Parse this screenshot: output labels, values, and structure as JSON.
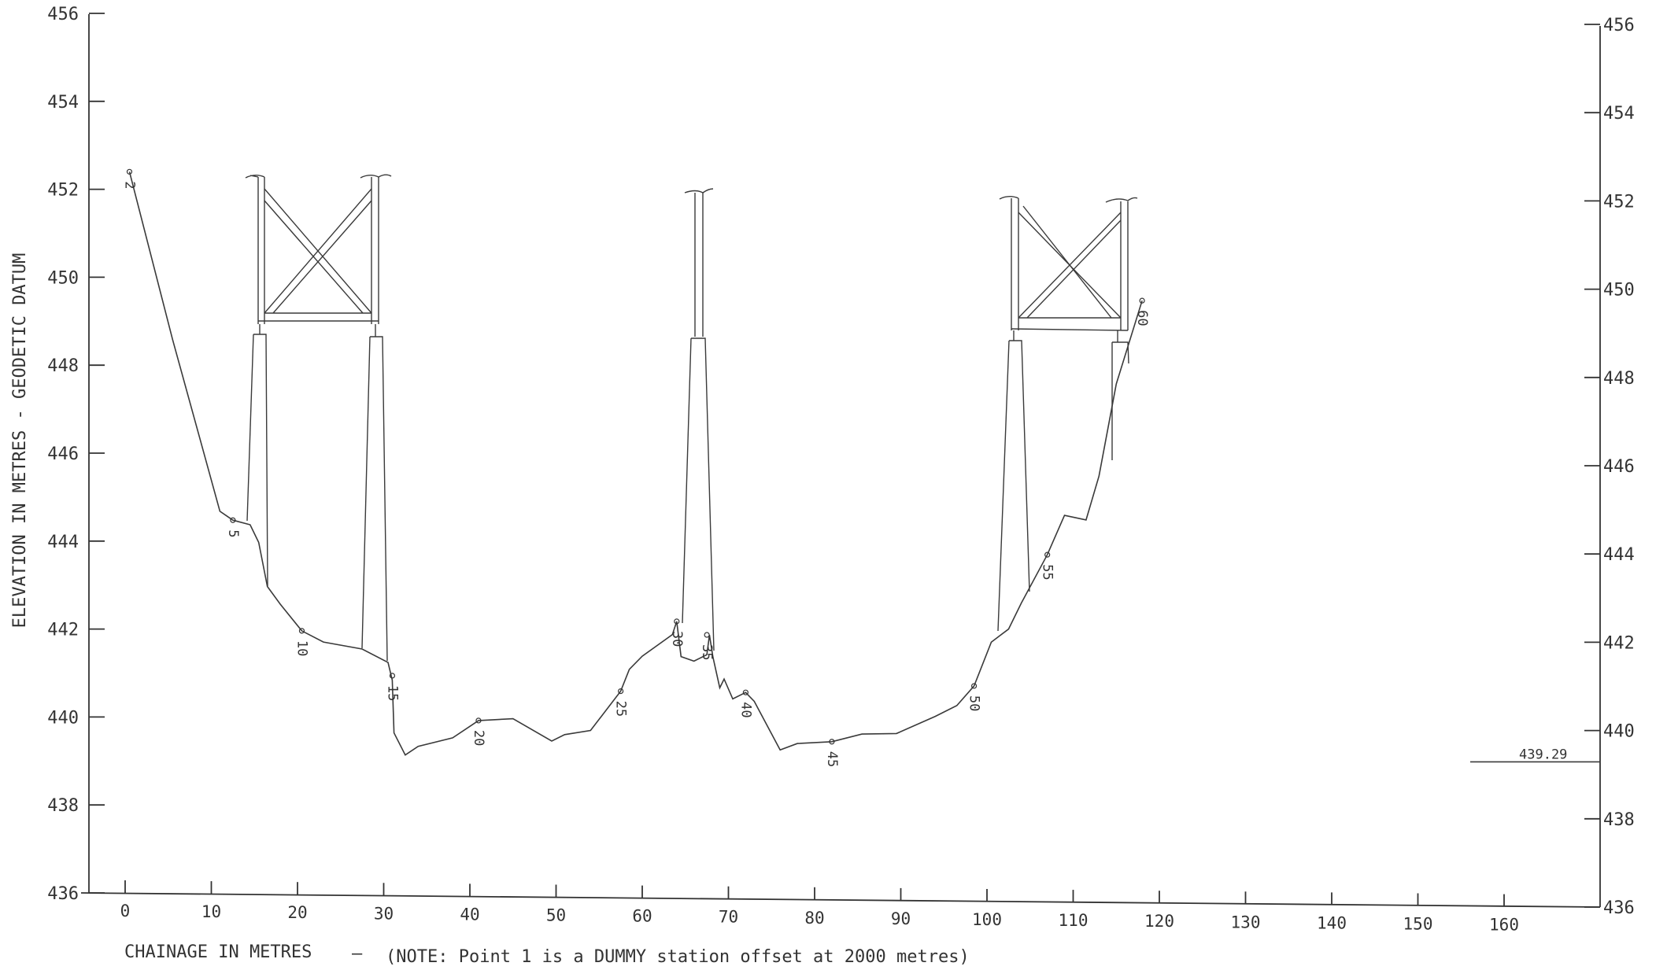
{
  "chart_data": {
    "type": "line",
    "ylabel": "ELEVATION IN METRES - GEODETIC DATUM",
    "xlabel": "CHAINAGE IN METRES",
    "note": "(NOTE: Point 1 is a DUMMY station offset at 2000 metres)",
    "xlabel_separator": "–",
    "xlim": [
      0,
      160
    ],
    "ylim": [
      436,
      456
    ],
    "x_ticks": [
      "0",
      "10",
      "20",
      "30",
      "40",
      "50",
      "60",
      "70",
      "80",
      "90",
      "100",
      "110",
      "120",
      "130",
      "140",
      "150",
      "160"
    ],
    "y_ticks_left": [
      "436",
      "438",
      "440",
      "442",
      "444",
      "446",
      "448",
      "450",
      "452",
      "454",
      "456"
    ],
    "y_ticks_right": [
      "436",
      "438",
      "440",
      "442",
      "444",
      "446",
      "448",
      "450",
      "452",
      "454",
      "456"
    ],
    "water_level": {
      "value": 439.29,
      "label": "439.29"
    },
    "series": [
      {
        "points": [
          [
            0.5,
            452.4
          ],
          [
            5.5,
            448.6
          ],
          [
            11,
            444.7
          ],
          [
            12.5,
            444.5
          ],
          [
            14.5,
            444.4
          ],
          [
            15.5,
            444.0
          ],
          [
            16.5,
            443.0
          ],
          [
            18,
            442.6
          ],
          [
            20.5,
            442.0
          ],
          [
            23,
            441.75
          ],
          [
            27.5,
            441.6
          ],
          [
            30.5,
            441.3
          ],
          [
            31,
            440.9
          ],
          [
            31.2,
            439.7
          ],
          [
            32.5,
            439.2
          ],
          [
            34,
            439.4
          ],
          [
            38,
            439.6
          ],
          [
            41,
            440.0
          ],
          [
            45,
            440.05
          ],
          [
            49.5,
            439.55
          ],
          [
            51,
            439.7
          ],
          [
            54,
            439.8
          ],
          [
            57.5,
            440.7
          ],
          [
            58.5,
            441.2
          ],
          [
            60,
            441.5
          ],
          [
            63.5,
            442.0
          ],
          [
            64,
            442.3
          ],
          [
            64.5,
            441.5
          ],
          [
            66,
            441.4
          ],
          [
            67.5,
            441.55
          ],
          [
            67.8,
            442.0
          ],
          [
            68.2,
            441.5
          ],
          [
            69,
            440.8
          ],
          [
            69.5,
            441.0
          ],
          [
            70.5,
            440.55
          ],
          [
            72,
            440.7
          ],
          [
            73,
            440.5
          ],
          [
            76,
            439.4
          ],
          [
            78,
            439.55
          ],
          [
            82,
            439.6
          ],
          [
            85.5,
            439.78
          ],
          [
            89.5,
            439.8
          ],
          [
            94,
            440.2
          ],
          [
            96.5,
            440.45
          ],
          [
            98.5,
            440.9
          ],
          [
            100.5,
            441.9
          ],
          [
            102.5,
            442.2
          ],
          [
            104,
            442.8
          ],
          [
            107,
            443.9
          ],
          [
            109,
            444.8
          ],
          [
            111.5,
            444.7
          ],
          [
            113,
            445.7
          ],
          [
            115,
            447.8
          ],
          [
            118,
            449.7
          ]
        ]
      }
    ],
    "station_labels": [
      {
        "label": "2",
        "x": 0.5,
        "y": 452.4
      },
      {
        "label": "5",
        "x": 12.5,
        "y": 444.5
      },
      {
        "label": "10",
        "x": 20.5,
        "y": 442.0
      },
      {
        "label": "15",
        "x": 31,
        "y": 441.0
      },
      {
        "label": "20",
        "x": 41,
        "y": 440.0
      },
      {
        "label": "25",
        "x": 57.5,
        "y": 440.7
      },
      {
        "label": "30",
        "x": 64,
        "y": 442.3
      },
      {
        "label": "35",
        "x": 67.5,
        "y": 442.0
      },
      {
        "label": "40",
        "x": 72,
        "y": 440.7
      },
      {
        "label": "45",
        "x": 82,
        "y": 439.6
      },
      {
        "label": "50",
        "x": 98.5,
        "y": 440.9
      },
      {
        "label": "55",
        "x": 107,
        "y": 443.9
      },
      {
        "label": "60",
        "x": 118,
        "y": 449.7
      }
    ]
  }
}
